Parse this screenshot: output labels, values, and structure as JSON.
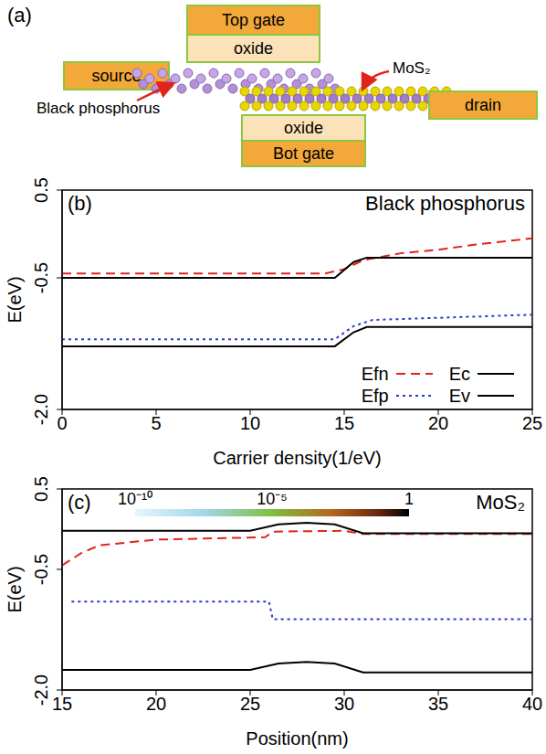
{
  "diagram": {
    "panel": "(a)",
    "top_gate": "Top gate",
    "top_oxide": "oxide",
    "source": "source",
    "drain": "drain",
    "bottom_oxide": "oxide",
    "bottom_gate": "Bot gate",
    "channel_1": "Black phosphorus",
    "channel_2": "MoS₂"
  },
  "chart_data": [
    {
      "type": "line",
      "title": "Black phosphorus",
      "annotations": [
        "(b)"
      ],
      "x_label": "Carrier density(1/eV)",
      "y_label": "E(eV)",
      "xlim": [
        0,
        25
      ],
      "xticks": [
        0,
        5,
        10,
        15,
        20,
        25
      ],
      "ylim": [
        -2,
        0.5
      ],
      "yticks": [
        {
          "value": -2,
          "label": "-2.0"
        },
        -0.5,
        0.5
      ],
      "legend": "lower right",
      "series": [
        {
          "name": "Efn",
          "color": "#e2231a",
          "line_style": "dashed",
          "x": [
            0,
            14,
            15,
            16,
            18,
            20,
            22,
            25
          ],
          "values": [
            -0.45,
            -0.45,
            -0.4,
            -0.3,
            -0.22,
            -0.18,
            -0.12,
            -0.05
          ]
        },
        {
          "name": "Efp",
          "color": "#2a3cc4",
          "line_style": "dotted",
          "x": [
            0,
            14.5,
            15.5,
            16.5,
            25
          ],
          "values": [
            -1.2,
            -1.2,
            -1.05,
            -0.98,
            -0.92
          ]
        },
        {
          "name": "Ec",
          "color": "#000000",
          "line_style": "solid",
          "x": [
            0,
            14.5,
            15.5,
            16.2,
            25
          ],
          "values": [
            -0.5,
            -0.5,
            -0.32,
            -0.27,
            -0.27
          ]
        },
        {
          "name": "Ev",
          "color": "#000000",
          "line_style": "solid",
          "x": [
            0,
            14.5,
            15.5,
            16.2,
            25
          ],
          "values": [
            -1.28,
            -1.28,
            -1.12,
            -1.06,
            -1.06
          ]
        }
      ]
    },
    {
      "type": "line",
      "title": "MoS₂",
      "annotations": [
        "(c)"
      ],
      "x_label": "Position(nm)",
      "y_label": "E(eV)",
      "xlim": [
        15,
        40
      ],
      "xticks": [
        15,
        20,
        25,
        30,
        35,
        40
      ],
      "ylim": [
        -2,
        0.5
      ],
      "yticks": [
        {
          "value": -2,
          "label": "-2.0"
        },
        -0.5,
        0.5
      ],
      "colorbar": {
        "range": [
          1e-10,
          1
        ],
        "ticks": [
          {
            "value": 1e-10,
            "label": "10⁻¹⁰"
          },
          {
            "value": 1e-05,
            "label": "10⁻⁵"
          },
          1
        ]
      },
      "series": [
        {
          "name": "Efn",
          "color": "#e2231a",
          "line_style": "dashed",
          "x": [
            15,
            16,
            17,
            20,
            25.8,
            26.2,
            30,
            31,
            40
          ],
          "values": [
            -0.45,
            -0.3,
            -0.2,
            -0.13,
            -0.1,
            -0.03,
            -0.02,
            -0.06,
            -0.06
          ]
        },
        {
          "name": "Efp",
          "color": "#2a3cc4",
          "line_style": "dotted",
          "x": [
            15.5,
            26,
            26.2,
            40
          ],
          "values": [
            -0.9,
            -0.9,
            -1.12,
            -1.12
          ]
        },
        {
          "name": "Ec",
          "color": "#000000",
          "line_style": "solid",
          "x": [
            15,
            25,
            26.5,
            28,
            29.5,
            31,
            40
          ],
          "values": [
            -0.02,
            -0.02,
            0.06,
            0.08,
            0.06,
            -0.05,
            -0.05
          ]
        },
        {
          "name": "Ev",
          "color": "#000000",
          "line_style": "solid",
          "x": [
            15,
            25,
            26.5,
            28,
            29.5,
            31,
            40
          ],
          "values": [
            -1.75,
            -1.75,
            -1.67,
            -1.65,
            -1.67,
            -1.78,
            -1.78
          ]
        }
      ]
    }
  ]
}
